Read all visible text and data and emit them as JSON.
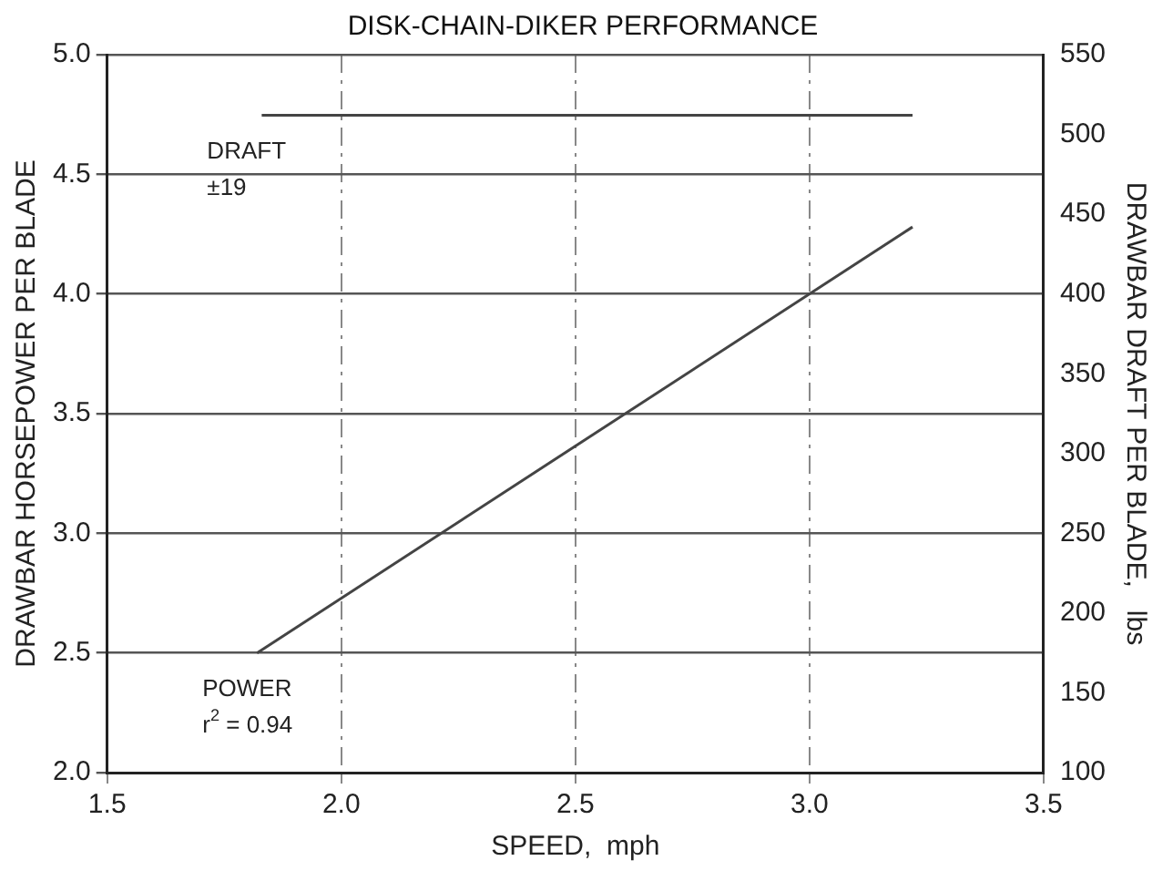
{
  "chart_data": {
    "type": "line",
    "title": "DISK-CHAIN-DIKER PERFORMANCE",
    "xlabel": "SPEED,  mph",
    "ylabel": "DRAWBAR HORSEPOWER PER BLADE",
    "y2label": "DRAWBAR DRAFT PER BLADE,   lbs",
    "series": [
      {
        "name": "DRAFT",
        "color": "#444444",
        "x": [
          1.83,
          3.22
        ],
        "values": [
          512,
          512
        ],
        "axis": "y2"
      },
      {
        "name": "POWER",
        "color": "#444444",
        "x": [
          1.82,
          3.22
        ],
        "values": [
          2.5,
          4.28
        ]
      }
    ],
    "xlim": [
      1.5,
      3.5
    ],
    "xticks": [
      {
        "value": 1.5,
        "label": "1.5"
      },
      {
        "value": 2,
        "label": "2.0"
      },
      {
        "value": 2.5,
        "label": "2.5"
      },
      {
        "value": 3,
        "label": "3.0"
      },
      {
        "value": 3.5,
        "label": "3.5"
      }
    ],
    "ylim": [
      2,
      5
    ],
    "yticks": [
      {
        "value": 2,
        "label": "2.0"
      },
      {
        "value": 2.5,
        "label": "2.5"
      },
      {
        "value": 3,
        "label": "3.0"
      },
      {
        "value": 3.5,
        "label": "3.5"
      },
      {
        "value": 4,
        "label": "4.0"
      },
      {
        "value": 4.5,
        "label": "4.5"
      },
      {
        "value": 5,
        "label": "5.0"
      }
    ],
    "y2lim": [
      100,
      550
    ],
    "y2ticks": [
      100,
      150,
      200,
      250,
      300,
      350,
      400,
      450,
      500,
      550
    ],
    "annotations": [
      "±19",
      "r$^{2}$ = 0.94"
    ],
    "grid": true,
    "marker": "none",
    "line_style": "solid",
    "legend": false
  }
}
